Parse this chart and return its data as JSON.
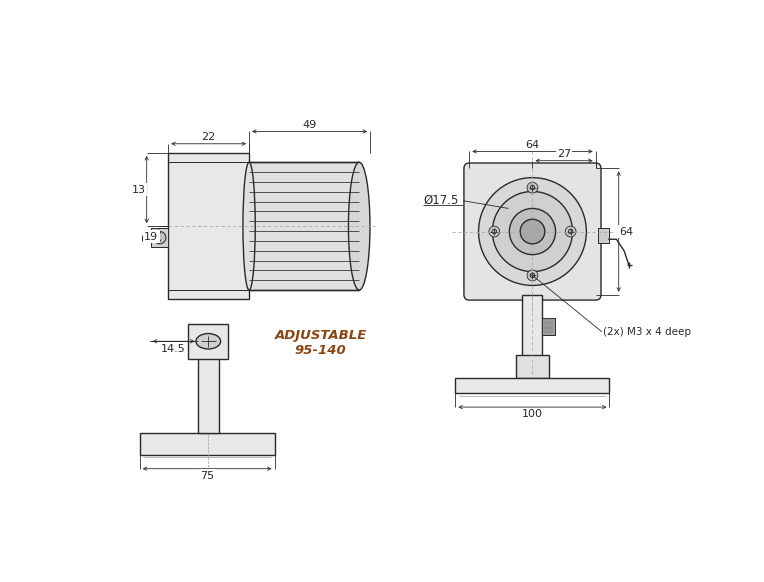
{
  "bg_color": "#ffffff",
  "lc": "#2a2a2a",
  "dc": "#2a2a2a",
  "adj_color": "#8B4513",
  "figsize": [
    7.64,
    5.82
  ],
  "dpi": 100,
  "dims": {
    "49": "49",
    "22": "22",
    "13": "13",
    "19": "19",
    "14_5": "14.5",
    "75": "75",
    "64t": "64",
    "27": "27",
    "phi": "Ø17.5",
    "64r": "64",
    "100": "100",
    "m3": "(2x) M3 x 4 deep",
    "adj": "ADJUSTABLE\n95-140"
  }
}
